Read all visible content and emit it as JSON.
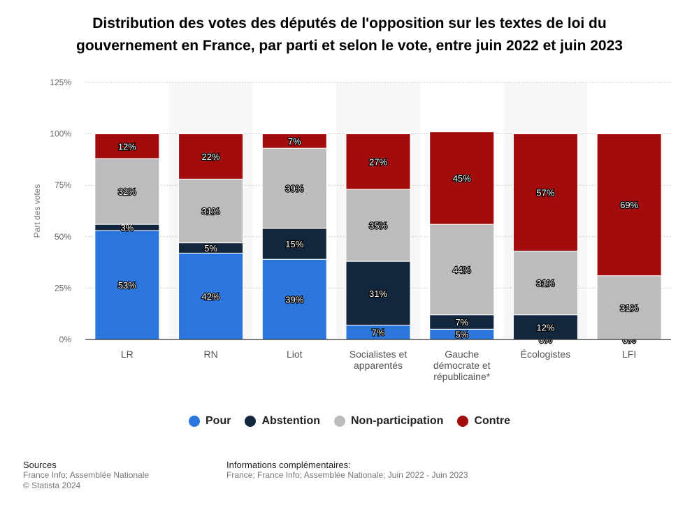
{
  "chart_data": {
    "type": "bar",
    "stacked": true,
    "title": "Distribution des votes des députés de l'opposition sur les textes de loi du gouvernement en France, par parti et selon le vote, entre juin 2022 et juin 2023",
    "ylabel": "Part des votes",
    "xlabel": "",
    "ylim": [
      0,
      125
    ],
    "yticks": [
      "0%",
      "25%",
      "50%",
      "75%",
      "100%",
      "125%"
    ],
    "categories": [
      [
        "LR"
      ],
      [
        "RN"
      ],
      [
        "Liot"
      ],
      [
        "Socialistes et",
        "apparentés"
      ],
      [
        "Gauche",
        "démocrate et",
        "républicaine*"
      ],
      [
        "Écologistes"
      ],
      [
        "LFI"
      ]
    ],
    "series": [
      {
        "name": "Pour",
        "color": "#2a76dd",
        "values": [
          53,
          42,
          39,
          7,
          5,
          0,
          0
        ]
      },
      {
        "name": "Abstention",
        "color": "#12263e",
        "values": [
          3,
          5,
          15,
          31,
          7,
          12,
          0
        ]
      },
      {
        "name": "Non-participation",
        "color": "#bcbcbc",
        "values": [
          32,
          31,
          39,
          35,
          44,
          31,
          31
        ]
      },
      {
        "name": "Contre",
        "color": "#a30c0c",
        "values": [
          12,
          22,
          7,
          27,
          45,
          57,
          69
        ]
      }
    ],
    "legend_position": "bottom",
    "grid": true
  },
  "legend": [
    {
      "label": "Pour",
      "color": "#2a76dd"
    },
    {
      "label": "Abstention",
      "color": "#12263e"
    },
    {
      "label": "Non-participation",
      "color": "#bcbcbc"
    },
    {
      "label": "Contre",
      "color": "#a30c0c"
    }
  ],
  "footer": {
    "sources_title": "Sources",
    "sources_lines": [
      "France Info; Assemblée Nationale",
      "© Statista 2024"
    ],
    "info_title": "Informations complémentaires:",
    "info_lines": [
      "France; France Info; Assemblée Nationale; Juin 2022 - Juin 2023"
    ]
  }
}
